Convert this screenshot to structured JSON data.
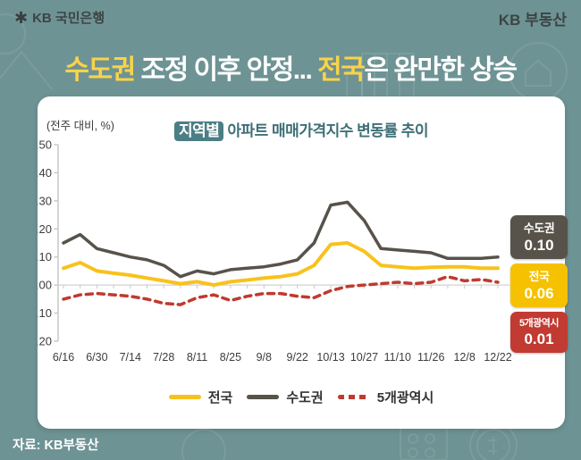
{
  "header": {
    "bank_name": "KB 국민은행",
    "brand_right": "KB 부동산",
    "star_icon": "kb-star-icon",
    "star_glyph": "✱"
  },
  "title": {
    "part1": "수도권",
    "part2": " 조정 이후 안정... ",
    "part3": "전국",
    "part4": "은 완만한 상승",
    "highlight_color": "#f9d348"
  },
  "card": {
    "unit_label": "(전주 대비, %)",
    "title_highlight": "지역별",
    "title_rest": "아파트 매매가격지수 변동률 추이",
    "highlight_bg": "#4c7e85"
  },
  "value_badges": [
    {
      "name": "수도권",
      "value": "0.10",
      "color": "#57534a"
    },
    {
      "name": "전국",
      "value": "0.06",
      "color": "#f5c100"
    },
    {
      "name": "5개광역시",
      "value": "0.01",
      "color": "#c13b32"
    }
  ],
  "source": "자료: KB부동산",
  "decor_icons": [
    "building-icon",
    "house-icon",
    "mountain-icon",
    "coin-dollar-icon",
    "dots-grid-icon"
  ],
  "chart_data": {
    "type": "line",
    "title": "지역별 아파트 매매가격지수 변동률 추이",
    "unit": "전주 대비, %",
    "ylim": [
      -0.2,
      0.5
    ],
    "y_ticks": [
      0.5,
      0.4,
      0.3,
      0.2,
      0.1,
      0.0,
      -0.1,
      -0.2
    ],
    "x_tick_labels": [
      "6/16",
      "6/30",
      "7/14",
      "7/28",
      "8/11",
      "8/25",
      "9/8",
      "9/22",
      "10/13",
      "10/27",
      "11/10",
      "11/26",
      "12/8",
      "12/22"
    ],
    "x_label_every": 2,
    "grid": "zero-line-only",
    "legend_position": "bottom",
    "series": [
      {
        "name": "전국",
        "color": "#f8c21c",
        "style": "solid",
        "width": 4,
        "values": [
          0.06,
          0.08,
          0.05,
          0.042,
          0.035,
          0.025,
          0.015,
          0.005,
          0.012,
          0.0,
          0.012,
          0.018,
          0.025,
          0.03,
          0.04,
          0.07,
          0.145,
          0.15,
          0.12,
          0.07,
          0.065,
          0.06,
          0.063,
          0.065,
          0.065,
          0.06,
          0.06
        ]
      },
      {
        "name": "수도권",
        "color": "#57524a",
        "style": "solid",
        "width": 3.5,
        "values": [
          0.15,
          0.18,
          0.13,
          0.115,
          0.1,
          0.09,
          0.07,
          0.03,
          0.05,
          0.04,
          0.055,
          0.06,
          0.065,
          0.075,
          0.09,
          0.15,
          0.285,
          0.295,
          0.23,
          0.13,
          0.125,
          0.12,
          0.115,
          0.095,
          0.095,
          0.095,
          0.1
        ]
      },
      {
        "name": "5개광역시",
        "color": "#bf3a2f",
        "style": "dashed",
        "width": 3.5,
        "values": [
          -0.05,
          -0.035,
          -0.03,
          -0.035,
          -0.04,
          -0.05,
          -0.065,
          -0.07,
          -0.045,
          -0.035,
          -0.055,
          -0.04,
          -0.03,
          -0.03,
          -0.04,
          -0.045,
          -0.02,
          -0.005,
          0.0,
          0.005,
          0.01,
          0.005,
          0.01,
          0.03,
          0.015,
          0.02,
          0.01
        ]
      }
    ],
    "end_labels": [
      {
        "series": "수도권",
        "value": 0.1
      },
      {
        "series": "전국",
        "value": 0.06
      },
      {
        "series": "5개광역시",
        "value": 0.01
      }
    ]
  }
}
